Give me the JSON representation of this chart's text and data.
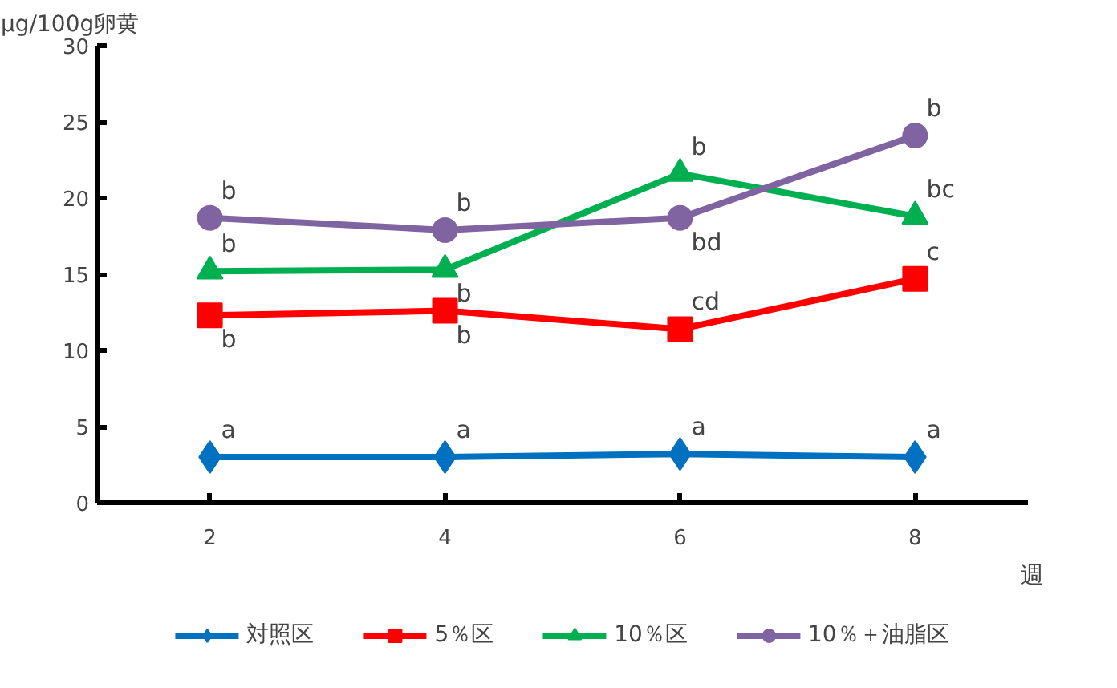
{
  "chart_data": {
    "type": "line",
    "ylabel": "µg/100g卵黄",
    "xlabel": "週",
    "categories": [
      "2",
      "4",
      "6",
      "8"
    ],
    "ylim": [
      0,
      30
    ],
    "yticks": [
      0,
      5,
      10,
      15,
      20,
      25,
      30
    ],
    "grid": false,
    "legend": "bottom",
    "line_style": "solid",
    "series": [
      {
        "name": "対照区",
        "color": "#0070c0",
        "marker": "diamond",
        "values": [
          3.0,
          3.0,
          3.2,
          3.0
        ],
        "value_labels": [
          "a",
          "a",
          "a",
          "a"
        ]
      },
      {
        "name": "5％区",
        "color": "#ff0000",
        "marker": "square",
        "values": [
          12.3,
          12.6,
          11.4,
          14.7
        ],
        "value_labels": [
          "b",
          "b",
          "cd",
          "c"
        ]
      },
      {
        "name": "10％区",
        "color": "#00b050",
        "marker": "triangle",
        "values": [
          15.2,
          15.3,
          21.6,
          18.8
        ],
        "value_labels": [
          "b",
          "b",
          "b",
          "bc"
        ]
      },
      {
        "name": "10％＋油脂区",
        "color": "#8064a2",
        "marker": "circle",
        "values": [
          18.7,
          17.9,
          18.7,
          24.1
        ],
        "value_labels": [
          "b",
          "b",
          "bd",
          "b"
        ]
      }
    ]
  }
}
